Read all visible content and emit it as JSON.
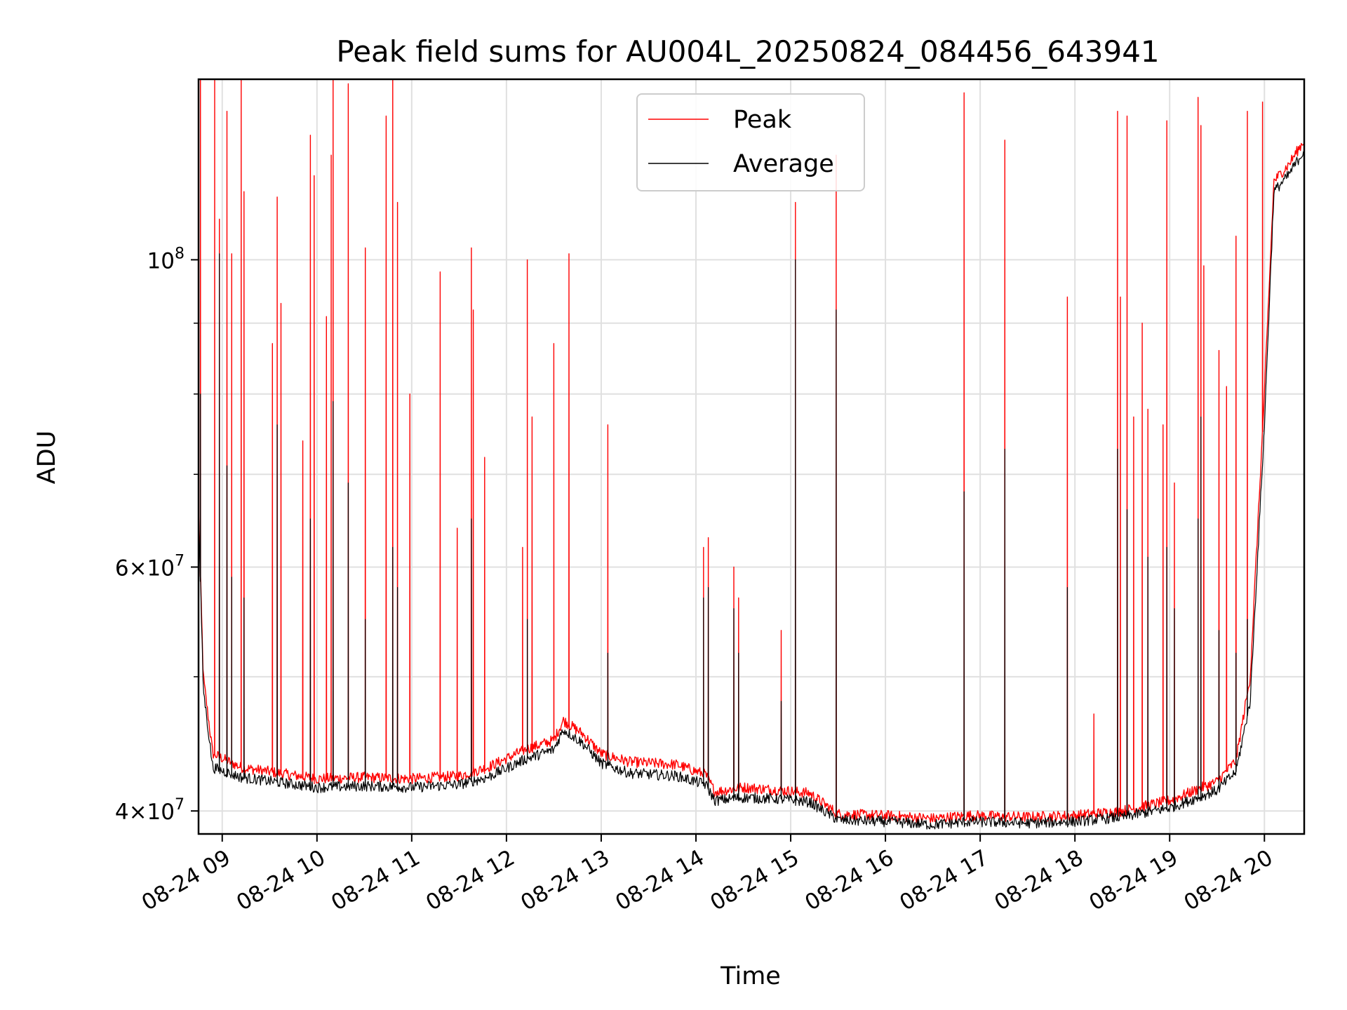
{
  "chart_data": {
    "type": "line",
    "title": "Peak field sums for AU004L_20250824_084456_643941",
    "xlabel": "Time",
    "ylabel": "ADU",
    "x_axis": {
      "type": "time",
      "range_hours": [
        8.75,
        20.42
      ],
      "ticks": [
        9,
        10,
        11,
        12,
        13,
        14,
        15,
        16,
        17,
        18,
        19,
        20
      ],
      "tick_labels": [
        "08-24 09",
        "08-24 10",
        "08-24 11",
        "08-24 12",
        "08-24 13",
        "08-24 14",
        "08-24 15",
        "08-24 16",
        "08-24 17",
        "08-24 18",
        "08-24 19",
        "08-24 20"
      ]
    },
    "y_axis": {
      "scale": "log",
      "range": [
        38500000,
        135000000
      ],
      "major_ticks": [
        40000000,
        60000000,
        100000000
      ],
      "minor_ticks": [
        50000000,
        70000000,
        80000000,
        90000000
      ],
      "grid": true
    },
    "legend": {
      "position": "upper-center"
    },
    "series": [
      {
        "name": "Peak",
        "color": "#ff0000",
        "baseline": [
          [
            8.75,
            66000000
          ],
          [
            8.8,
            50000000
          ],
          [
            8.9,
            44000000
          ],
          [
            9.2,
            43000000
          ],
          [
            10.0,
            42200000
          ],
          [
            10.5,
            42300000
          ],
          [
            11.0,
            42200000
          ],
          [
            11.5,
            42400000
          ],
          [
            11.8,
            43000000
          ],
          [
            12.2,
            44300000
          ],
          [
            12.5,
            45000000
          ],
          [
            12.6,
            46500000
          ],
          [
            12.8,
            45500000
          ],
          [
            13.0,
            44000000
          ],
          [
            13.3,
            43400000
          ],
          [
            13.8,
            43200000
          ],
          [
            14.1,
            42500000
          ],
          [
            14.2,
            41300000
          ],
          [
            14.5,
            41600000
          ],
          [
            14.9,
            41400000
          ],
          [
            15.2,
            41200000
          ],
          [
            15.5,
            39800000
          ],
          [
            16.0,
            39700000
          ],
          [
            16.5,
            39500000
          ],
          [
            16.9,
            39700000
          ],
          [
            17.5,
            39600000
          ],
          [
            18.0,
            39700000
          ],
          [
            18.5,
            40000000
          ],
          [
            19.0,
            40700000
          ],
          [
            19.5,
            42000000
          ],
          [
            19.7,
            43500000
          ],
          [
            19.85,
            50000000
          ],
          [
            20.0,
            80000000
          ],
          [
            20.1,
            114000000
          ],
          [
            20.25,
            117000000
          ],
          [
            20.42,
            122000000
          ]
        ],
        "spikes": [
          [
            8.77,
            140000000
          ],
          [
            8.92,
            138000000
          ],
          [
            8.97,
            107000000
          ],
          [
            9.05,
            128000000
          ],
          [
            9.1,
            101000000
          ],
          [
            9.2,
            135000000
          ],
          [
            9.23,
            112000000
          ],
          [
            9.53,
            87000000
          ],
          [
            9.58,
            111000000
          ],
          [
            9.62,
            93000000
          ],
          [
            9.85,
            74000000
          ],
          [
            9.93,
            123000000
          ],
          [
            9.97,
            115000000
          ],
          [
            10.1,
            91000000
          ],
          [
            10.15,
            119000000
          ],
          [
            10.17,
            138000000
          ],
          [
            10.33,
            134000000
          ],
          [
            10.51,
            102000000
          ],
          [
            10.73,
            127000000
          ],
          [
            10.8,
            143000000
          ],
          [
            10.85,
            110000000
          ],
          [
            10.98,
            80000000
          ],
          [
            11.3,
            98000000
          ],
          [
            11.48,
            64000000
          ],
          [
            11.63,
            102000000
          ],
          [
            11.65,
            92000000
          ],
          [
            11.77,
            72000000
          ],
          [
            12.17,
            62000000
          ],
          [
            12.22,
            100000000
          ],
          [
            12.27,
            77000000
          ],
          [
            12.5,
            87000000
          ],
          [
            12.66,
            101000000
          ],
          [
            13.07,
            76000000
          ],
          [
            14.08,
            62000000
          ],
          [
            14.13,
            63000000
          ],
          [
            14.4,
            60000000
          ],
          [
            14.45,
            57000000
          ],
          [
            14.9,
            54000000
          ],
          [
            15.05,
            110000000
          ],
          [
            15.48,
            119000000
          ],
          [
            16.83,
            132000000
          ],
          [
            17.26,
            122000000
          ],
          [
            17.92,
            94000000
          ],
          [
            18.2,
            47000000
          ],
          [
            18.45,
            128000000
          ],
          [
            18.48,
            94000000
          ],
          [
            18.55,
            127000000
          ],
          [
            18.62,
            77000000
          ],
          [
            18.71,
            90000000
          ],
          [
            18.77,
            78000000
          ],
          [
            18.93,
            76000000
          ],
          [
            18.97,
            126000000
          ],
          [
            19.05,
            69000000
          ],
          [
            19.3,
            131000000
          ],
          [
            19.33,
            125000000
          ],
          [
            19.36,
            99000000
          ],
          [
            19.52,
            86000000
          ],
          [
            19.6,
            81000000
          ],
          [
            19.7,
            104000000
          ],
          [
            19.82,
            128000000
          ],
          [
            19.98,
            130000000
          ]
        ]
      },
      {
        "name": "Average",
        "color": "#000000",
        "baseline": [
          [
            8.75,
            66000000
          ],
          [
            8.8,
            49000000
          ],
          [
            8.9,
            43000000
          ],
          [
            9.2,
            42300000
          ],
          [
            10.0,
            41600000
          ],
          [
            10.5,
            41700000
          ],
          [
            11.0,
            41600000
          ],
          [
            11.5,
            41800000
          ],
          [
            11.8,
            42300000
          ],
          [
            12.2,
            43600000
          ],
          [
            12.5,
            44300000
          ],
          [
            12.6,
            45800000
          ],
          [
            12.8,
            44800000
          ],
          [
            13.0,
            43300000
          ],
          [
            13.3,
            42600000
          ],
          [
            13.8,
            42400000
          ],
          [
            14.1,
            41800000
          ],
          [
            14.2,
            40700000
          ],
          [
            14.5,
            40900000
          ],
          [
            14.9,
            40800000
          ],
          [
            15.2,
            40600000
          ],
          [
            15.5,
            39400000
          ],
          [
            16.0,
            39300000
          ],
          [
            16.5,
            39100000
          ],
          [
            16.9,
            39300000
          ],
          [
            17.5,
            39200000
          ],
          [
            18.0,
            39300000
          ],
          [
            18.5,
            39600000
          ],
          [
            19.0,
            40200000
          ],
          [
            19.5,
            41400000
          ],
          [
            19.7,
            42700000
          ],
          [
            19.85,
            48000000
          ],
          [
            20.0,
            76000000
          ],
          [
            20.1,
            112000000
          ],
          [
            20.25,
            115000000
          ],
          [
            20.42,
            120000000
          ]
        ],
        "spikes": [
          [
            8.77,
            80000000
          ],
          [
            8.97,
            101000000
          ],
          [
            9.05,
            71000000
          ],
          [
            9.1,
            59000000
          ],
          [
            9.23,
            57000000
          ],
          [
            9.58,
            76000000
          ],
          [
            9.93,
            65000000
          ],
          [
            10.17,
            79000000
          ],
          [
            10.33,
            69000000
          ],
          [
            10.51,
            55000000
          ],
          [
            10.8,
            62000000
          ],
          [
            10.85,
            58000000
          ],
          [
            11.63,
            65000000
          ],
          [
            12.22,
            55000000
          ],
          [
            13.07,
            52000000
          ],
          [
            14.08,
            57000000
          ],
          [
            14.13,
            58000000
          ],
          [
            14.4,
            56000000
          ],
          [
            14.45,
            52000000
          ],
          [
            14.9,
            48000000
          ],
          [
            15.05,
            100000000
          ],
          [
            15.48,
            92000000
          ],
          [
            16.83,
            68000000
          ],
          [
            17.26,
            73000000
          ],
          [
            17.92,
            58000000
          ],
          [
            18.45,
            73000000
          ],
          [
            18.55,
            66000000
          ],
          [
            18.77,
            61000000
          ],
          [
            18.97,
            62000000
          ],
          [
            19.05,
            56000000
          ],
          [
            19.3,
            65000000
          ],
          [
            19.33,
            77000000
          ],
          [
            19.52,
            54000000
          ],
          [
            19.7,
            52000000
          ],
          [
            19.82,
            55000000
          ]
        ]
      }
    ]
  }
}
